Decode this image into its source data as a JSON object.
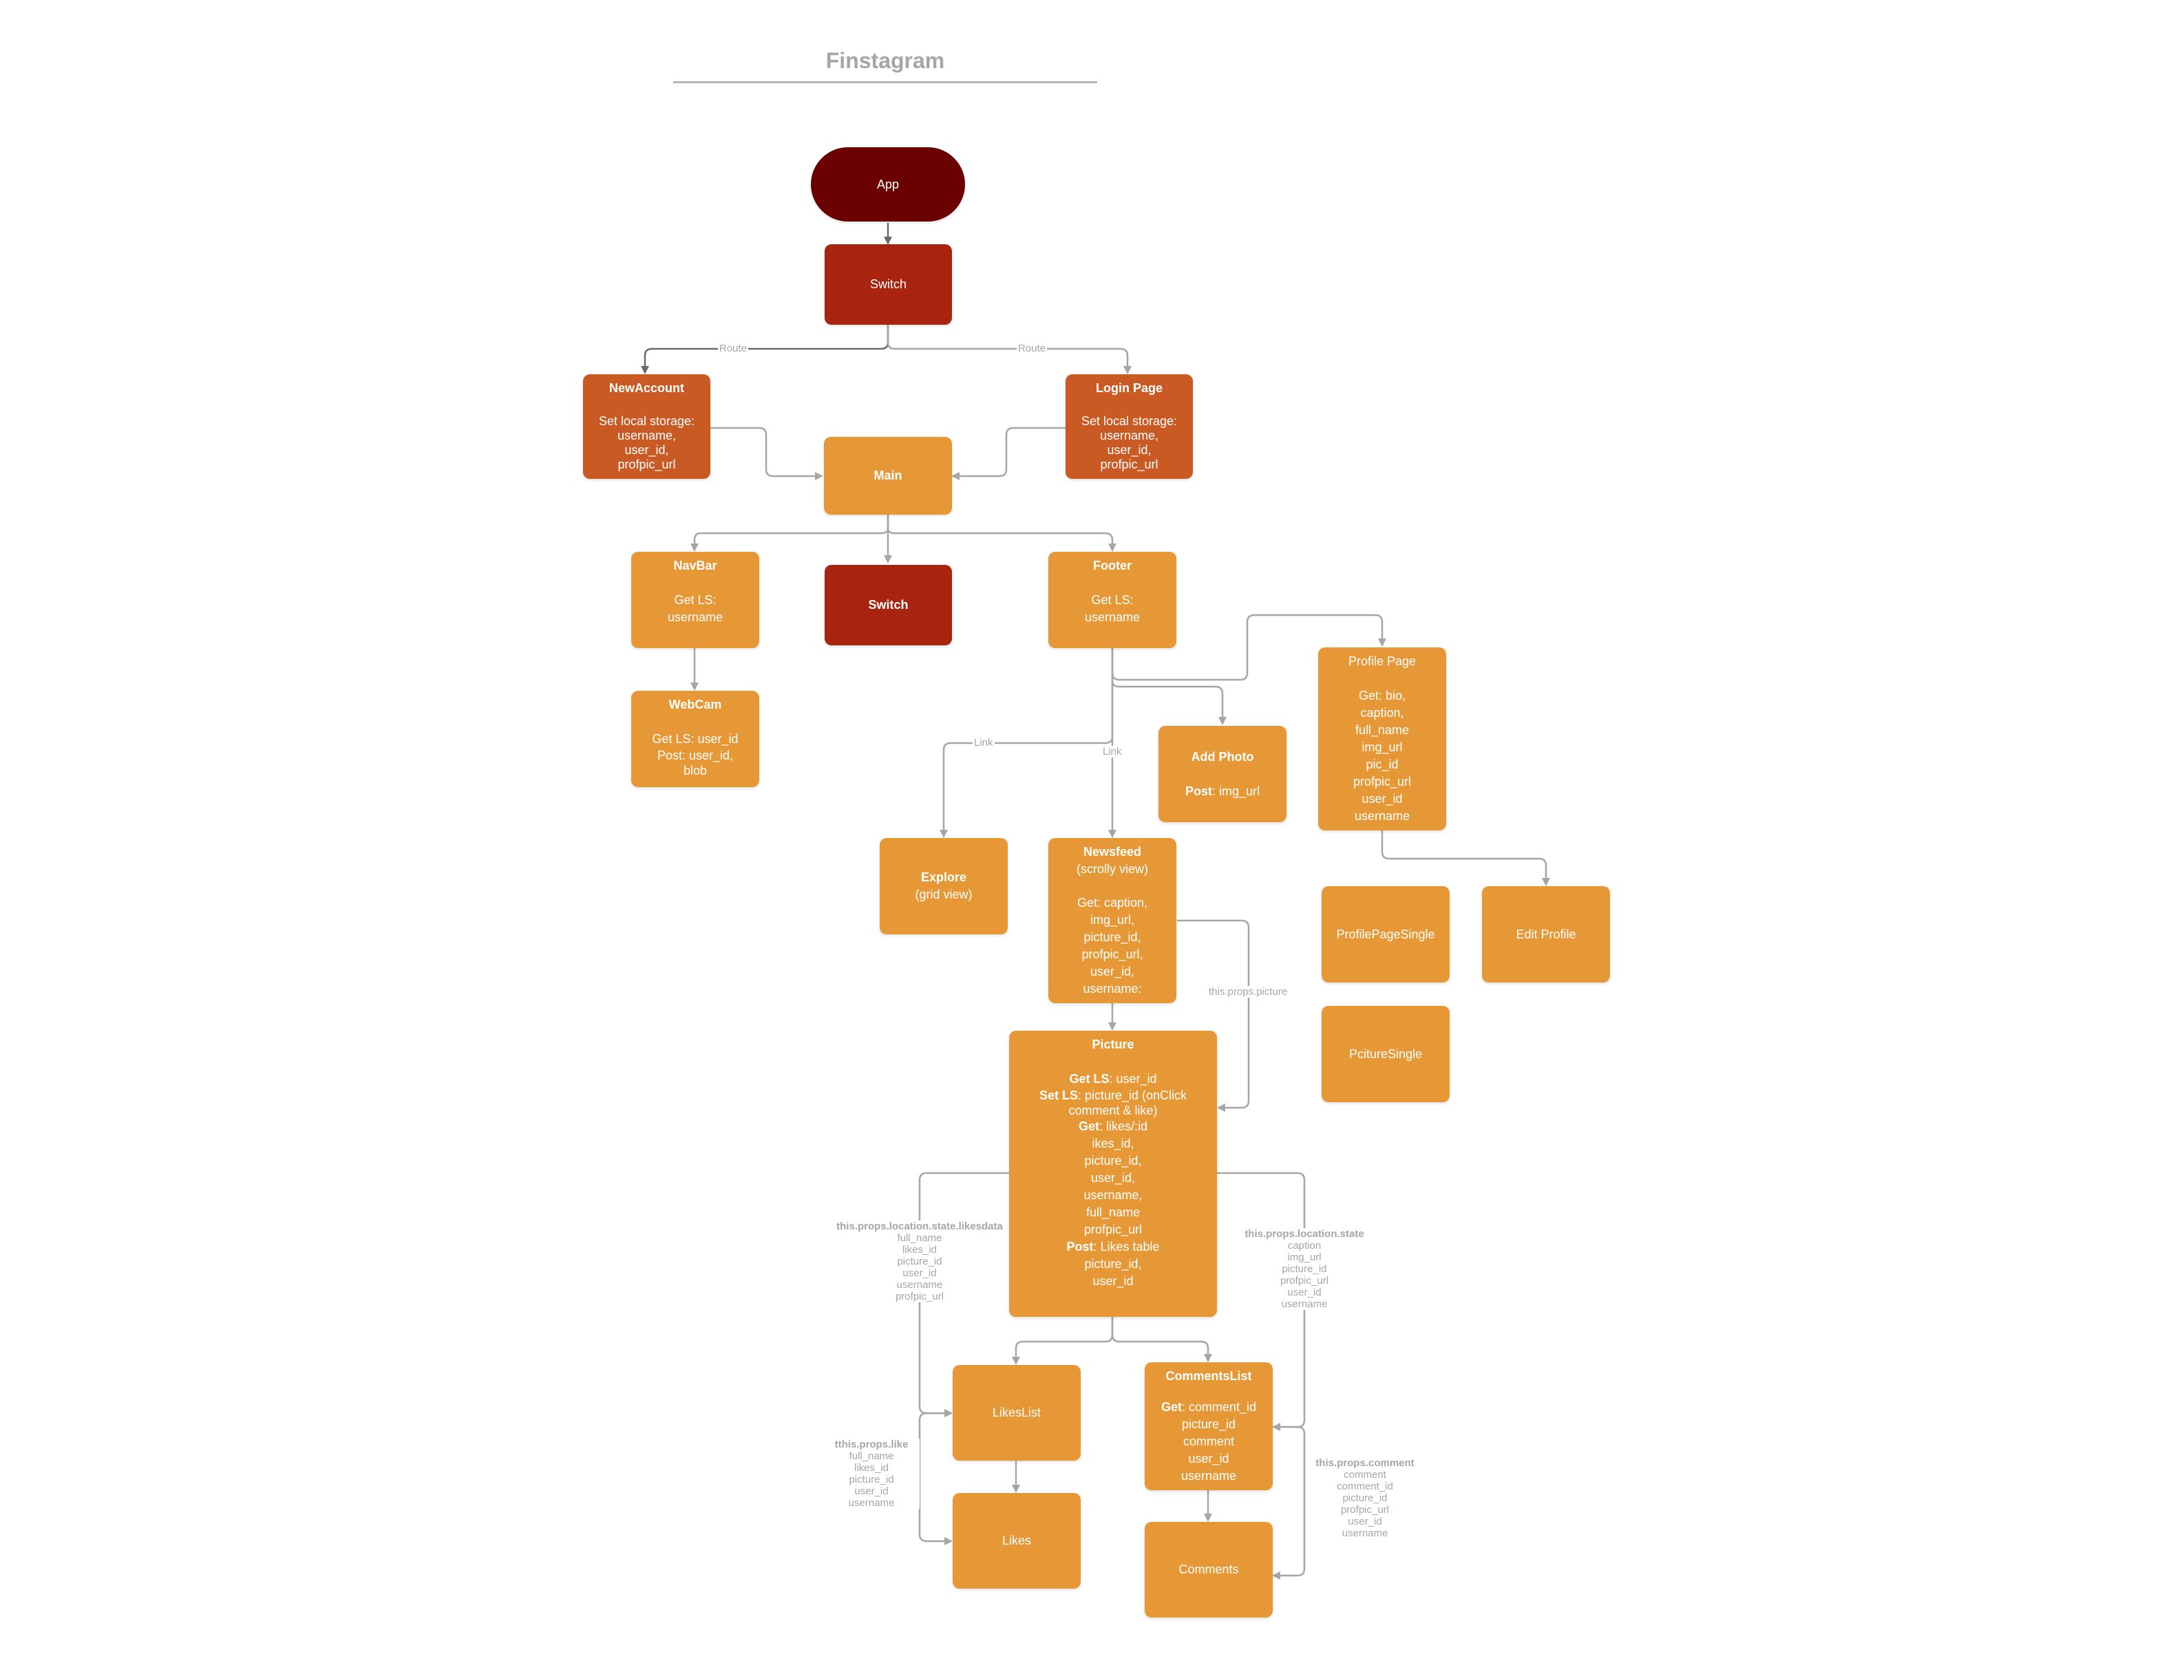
{
  "title": "Finstagram",
  "nodes": {
    "app": {
      "title": "App"
    },
    "switch_top": {
      "title": "Switch"
    },
    "new_account": {
      "title": "NewAccount",
      "lines": [
        "Set local storage:",
        "username,",
        "user_id,",
        "profpic_url"
      ]
    },
    "login_page": {
      "title": "Login Page",
      "lines": [
        "Set local storage:",
        "username,",
        "user_id,",
        "profpic_url"
      ]
    },
    "main": {
      "title": "Main"
    },
    "navbar": {
      "title": "NavBar",
      "lines": [
        "Get LS:",
        "username"
      ]
    },
    "switch_mid": {
      "title": "Switch"
    },
    "footer": {
      "title": "Footer",
      "lines": [
        "Get LS:",
        "username"
      ]
    },
    "webcam": {
      "title": "WebCam",
      "lines": [
        "Get LS: user_id",
        "Post: user_id,",
        "blob"
      ]
    },
    "add_photo": {
      "title": "Add Photo",
      "line_bold": "Post",
      "line_rest": ": img_url"
    },
    "profile_page": {
      "title": "Profile Page",
      "lines": [
        "Get: bio,",
        "caption,",
        "full_name",
        "img_url",
        "pic_id",
        "profpic_url",
        "user_id",
        "username"
      ]
    },
    "explore": {
      "title": "Explore",
      "subtitle": "(grid view)"
    },
    "newsfeed": {
      "title": "Newsfeed",
      "subtitle": "(scrolly view)",
      "lines": [
        "Get: caption,",
        "img_url,",
        "picture_id,",
        "profpic_url,",
        "user_id,",
        "username:"
      ]
    },
    "profile_page_single": {
      "title": "ProfilePageSingle"
    },
    "edit_profile": {
      "title": "Edit Profile"
    },
    "picture_single": {
      "title": "PcitureSingle"
    },
    "picture": {
      "title": "Picture",
      "get_ls_bold": "Get LS",
      "get_ls_rest": ": user_id",
      "set_ls_bold": "Set LS",
      "set_ls_rest": ": picture_id (onClick",
      "set_ls_rest2": "comment & like)",
      "get_bold": "Get",
      "get_rest": ": likes/:id",
      "lines": [
        "ikes_id,",
        "picture_id,",
        "user_id,",
        "username,",
        "full_name",
        "profpic_url"
      ],
      "post_bold": "Post",
      "post_rest": ": Likes table",
      "post_lines": [
        "picture_id,",
        "user_id"
      ]
    },
    "likes_list": {
      "title": "LikesList"
    },
    "comments_list": {
      "title": "CommentsList",
      "get_bold": "Get",
      "get_rest": ": comment_id",
      "lines": [
        "picture_id",
        "comment",
        "user_id",
        "username"
      ]
    },
    "likes": {
      "title": "Likes"
    },
    "comments": {
      "title": "Comments"
    }
  },
  "edge_labels": {
    "route_left": "Route",
    "route_right": "Route",
    "link_left": "Link",
    "link_right": "Link",
    "props_picture": "this.props.picture",
    "likesdata": {
      "head": "this.props.location.state.likesdata",
      "lines": [
        "full_name",
        "likes_id",
        "picture_id",
        "user_id",
        "username",
        "profpic_url"
      ]
    },
    "location_state": {
      "head": "this.props.location.state",
      "lines": [
        "caption",
        "img_url",
        "picture_id",
        "profpic_url",
        "user_id",
        "username"
      ]
    },
    "props_like": {
      "head": "tthis.props.like",
      "lines": [
        "full_name",
        "likes_id",
        "picture_id",
        "user_id",
        "username"
      ]
    },
    "props_comment": {
      "head": "this.props.comment",
      "lines": [
        "comment",
        "comment_id",
        "picture_id",
        "profpic_url",
        "user_id",
        "username"
      ]
    }
  },
  "colors": {
    "dark_maroon": "#6b0000",
    "red": "#a8240e",
    "rust": "#c95a24",
    "orange": "#e69836",
    "connector": "#a6a6a6",
    "label": "#a6a6a6"
  }
}
